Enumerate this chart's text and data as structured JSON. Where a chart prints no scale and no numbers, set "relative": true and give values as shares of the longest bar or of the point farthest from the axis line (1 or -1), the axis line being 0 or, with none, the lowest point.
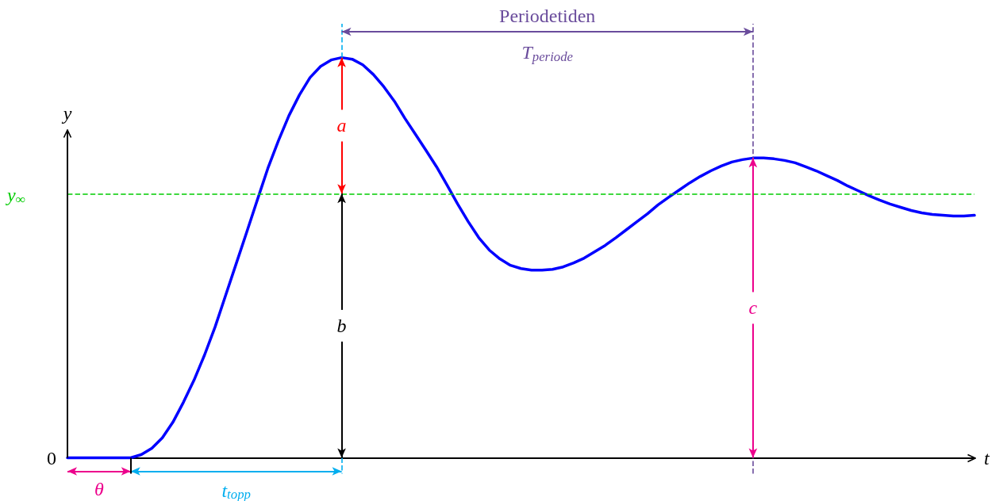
{
  "chart_data": {
    "type": "line",
    "relative": true,
    "xlabel": "t",
    "ylabel": "y",
    "tick_labels": false,
    "marker": "none",
    "line_style": "solid",
    "categories": [
      null,
      null,
      null,
      null,
      null,
      null,
      null,
      null,
      null,
      null,
      null,
      null,
      null,
      null,
      null,
      null,
      null,
      null,
      null,
      null,
      null,
      null,
      null,
      null,
      null,
      null,
      null,
      null,
      null,
      null,
      null,
      null,
      null,
      null,
      null,
      null,
      null,
      null,
      null,
      null,
      null,
      null,
      null,
      null,
      null,
      null,
      null,
      null,
      null,
      null,
      null,
      null,
      null,
      null,
      null,
      null,
      null,
      null,
      null,
      null,
      null,
      null,
      null,
      null,
      null,
      null,
      null,
      null,
      null,
      null,
      null,
      null,
      null,
      null,
      null,
      null,
      null,
      null,
      null,
      null,
      null,
      null,
      null,
      null,
      null,
      null,
      null
    ],
    "series": [
      {
        "color": "#0000ff",
        "values": [
          0,
          0,
          0,
          0,
          0,
          0,
          0,
          0.008,
          0.024,
          0.05,
          0.089,
          0.139,
          0.194,
          0.257,
          0.327,
          0.406,
          0.485,
          0.564,
          0.644,
          0.723,
          0.792,
          0.855,
          0.907,
          0.95,
          0.978,
          0.994,
          1,
          0.996,
          0.982,
          0.958,
          0.927,
          0.891,
          0.848,
          0.808,
          0.768,
          0.727,
          0.681,
          0.634,
          0.59,
          0.55,
          0.519,
          0.497,
          0.481,
          0.473,
          0.469,
          0.469,
          0.471,
          0.477,
          0.487,
          0.499,
          0.515,
          0.531,
          0.55,
          0.57,
          0.59,
          0.61,
          0.632,
          0.651,
          0.669,
          0.687,
          0.703,
          0.717,
          0.729,
          0.739,
          0.745,
          0.749,
          0.749,
          0.747,
          0.743,
          0.737,
          0.727,
          0.717,
          0.705,
          0.693,
          0.679,
          0.667,
          0.655,
          0.644,
          0.634,
          0.626,
          0.618,
          0.612,
          0.608,
          0.606,
          0.604,
          0.604,
          0.606
        ]
      }
    ],
    "ref_lines": [
      {
        "axis": "y",
        "value": 0.66,
        "label": "y$_{∞}$",
        "color": "#00cc00",
        "line_style": "dashed"
      }
    ],
    "annotations": [
      "a",
      "b",
      "c",
      "θ",
      "t$_{topp}$",
      "Periodetiden",
      "T$_{periode}$",
      "0"
    ]
  }
}
